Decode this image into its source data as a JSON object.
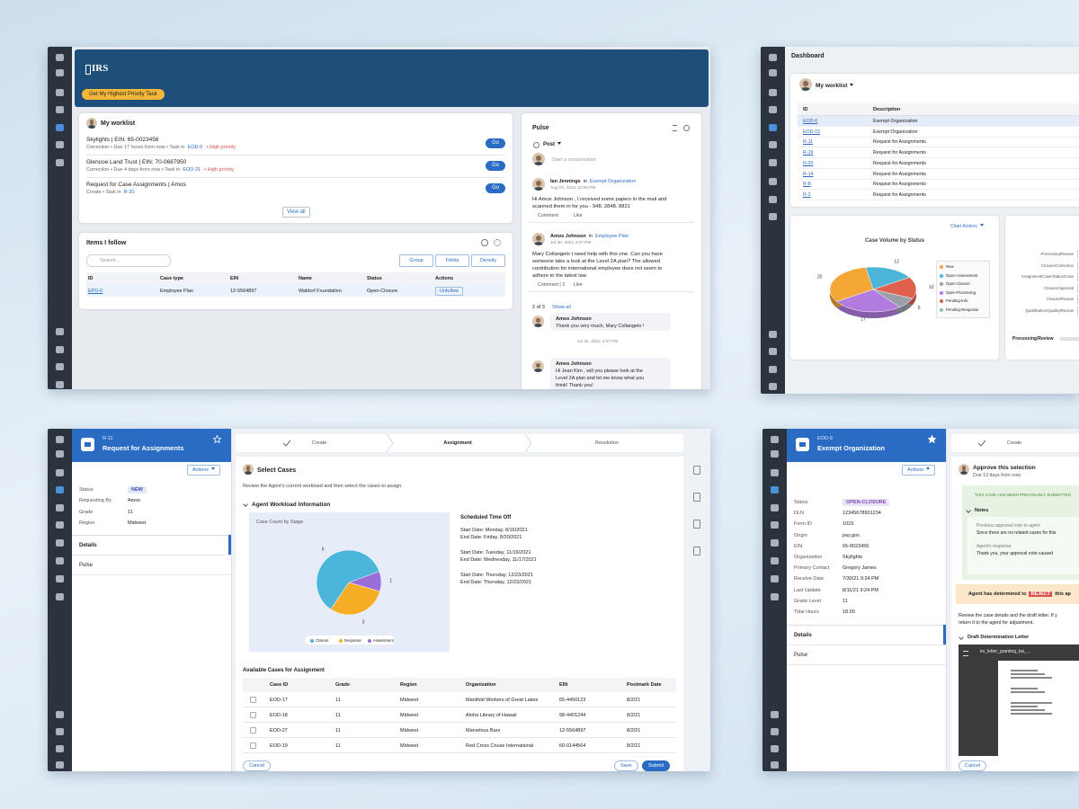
{
  "worklist_app": {
    "logo": "IRS",
    "priority_button": "Get My Highest Priority Task",
    "worklist": {
      "title": "My worklist",
      "items": [
        {
          "title": "Skylights  |  EIN: 65-0023456",
          "meta": "Correction  •  Due 17 hours from now  •  Task in",
          "case": "EOD-6",
          "flag": "•  High priority",
          "action": "Go"
        },
        {
          "title": "Glencoe Land Trust  |  EIN: 70-0687950",
          "meta": "Correction  •  Due 4 days from now  •  Task in",
          "case": "EOD-21",
          "flag": "•  High priority",
          "action": "Go"
        },
        {
          "title": "Request for Case Assignments  |  Amos",
          "meta": "Create  •  Task in",
          "case": "R-20",
          "action": "Go"
        }
      ],
      "view_all": "View all"
    },
    "followed": {
      "title": "Items I follow",
      "search": "Search...",
      "tools": [
        "Group",
        "Fields",
        "Density"
      ],
      "columns": [
        "ID",
        "Case type",
        "EIN",
        "Name",
        "Status",
        "Actions"
      ],
      "rows": [
        [
          "EPD-6",
          "Employee Plan",
          "12-5564897",
          "Waldorf Foundation",
          "Open-Closure",
          "Unfollow"
        ]
      ]
    },
    "pulse": {
      "title": "Pulse",
      "post": "Post",
      "placeholder": "Start a conversation",
      "posts": [
        {
          "author": "Ian Jennings",
          "in": "in",
          "context": "Exempt Organization",
          "time": "Aug 04, 2021 12:08 PM",
          "text": [
            "Hi Amos Johnson , I received some papers in the mail and",
            "scanned them in for you - 948, 2848, 8821"
          ],
          "actions": [
            "Comment",
            "Like"
          ]
        },
        {
          "author": "Amos Johnson",
          "in": "in",
          "context": "Employee Plan",
          "time": "Jul 30, 2021 4:07 PM",
          "text": [
            "Mary Collangelo I need help with this one. Can you have",
            "someone take a look at the Level 2A plan? The allowed",
            "contribution for international employee does not seem to",
            "adhere to the latest law."
          ],
          "actions": [
            "Comment | 3",
            "Like"
          ]
        }
      ],
      "replies_count": "2 of 3",
      "show_all": "Show all",
      "replies": [
        {
          "author": "Amos Johnson",
          "text": [
            "Thank you very much, Mary Collangelo !"
          ],
          "time": "Jul 31, 2021 4:07 PM"
        },
        {
          "author": "Amos Johnson",
          "text": [
            "Hi Jean Kim , will you please look at the",
            "Level 2A plan and let me know what you",
            "think! Thank you!"
          ]
        }
      ]
    }
  },
  "dashboard": {
    "title": "Dashboard",
    "worklist_title": "My worklist",
    "columns": [
      "ID",
      "Description"
    ],
    "rows": [
      [
        "EOD-6",
        "Exempt Organization"
      ],
      [
        "EOD-15",
        "Exempt Organization"
      ],
      [
        "R-11",
        "Request for Assignments"
      ],
      [
        "R-19",
        "Request for Assignments"
      ],
      [
        "R-20",
        "Request for Assignments"
      ],
      [
        "R-14",
        "Request for Assignments"
      ],
      [
        "R-8",
        "Request for Assignments"
      ],
      [
        "R-2",
        "Request for Assignments"
      ]
    ],
    "chart_actions": "Chart Actions",
    "case_volume_chart": {
      "type": "pie",
      "title": "Case Volume by Status",
      "slices": [
        {
          "value": 12,
          "color": "#4db6d8"
        },
        {
          "value": 10,
          "color": "#e0604e"
        },
        {
          "value": 5,
          "color": "#9aa0a8"
        },
        {
          "value": 17,
          "color": "#b27be0"
        },
        {
          "value": 20,
          "color": "#f4a637"
        }
      ],
      "legend": [
        {
          "name": "New",
          "color": "#f4a637"
        },
        {
          "name": "Open-Assessment",
          "color": "#4db6d8"
        },
        {
          "name": "Open-Closure",
          "color": "#9aa0a8"
        },
        {
          "name": "Open-Processing",
          "color": "#b27be0"
        },
        {
          "name": "Pending-Info",
          "color": "#e0604e"
        },
        {
          "name": "Pending-Response",
          "color": "#7fc9a3"
        }
      ]
    },
    "stage_labels": [
      "Processing/Review",
      "Closure/Correction",
      "Assignment/Case/Status/Case",
      "Closure/Approval",
      "Closure/Review",
      "Qualification/Quality/Review"
    ],
    "footer_label": "Processing/Review"
  },
  "assignment_case": {
    "case_id": "R-11",
    "title": "Request for Assignments",
    "actions": "Actions",
    "fields": [
      {
        "label": "Status",
        "value": "NEW"
      },
      {
        "label": "Requesting By",
        "value": "Amos"
      },
      {
        "label": "Grade",
        "value": "11"
      },
      {
        "label": "Region",
        "value": "Midwest"
      }
    ],
    "tabs": [
      "Details",
      "Pulse"
    ],
    "stages": [
      "Create",
      "Assignment",
      "Resolution"
    ],
    "step_title": "Select Cases",
    "instructions": "Review the Agent's current workload and then select the cases to assign.",
    "section": "Agent Workload Information",
    "chart": {
      "type": "pie",
      "title": "Case Count by Stage",
      "slices": [
        {
          "name": "Closure",
          "value": 6,
          "color": "#4bb5da"
        },
        {
          "name": "Response",
          "value": 3,
          "color": "#f5ae25"
        },
        {
          "name": "Assessment",
          "value": 1,
          "color": "#9a6ed8"
        }
      ]
    },
    "time_off": {
      "title": "Scheduled Time Off",
      "periods": [
        [
          "Start Date: Monday, 8/16/2021",
          "End Date:  Friday, 8/20/2021"
        ],
        [
          "Start Date: Tuesday, 11/16/2021",
          "End Date: Wednesday, 11/17/2021"
        ],
        [
          "Start Date: Thursday, 12/23/2021",
          "End Date: Thursday, 12/23/2021"
        ]
      ]
    },
    "cases": {
      "title": "Available Cases for Assignment",
      "columns": [
        "Case ID",
        "Grade",
        "Region",
        "Organization",
        "EIN",
        "Postmark Date"
      ],
      "rows": [
        [
          "EOD-17",
          "11",
          "Midwest",
          "Manifold Workers of Great Lakes",
          "65-4450123",
          "8/2/21"
        ],
        [
          "EOD-18",
          "11",
          "Midwest",
          "Aloha Library of Hawaii",
          "98-4401244",
          "8/2/21"
        ],
        [
          "EOD-27",
          "11",
          "Midwest",
          "Marvelous Bars",
          "12-5564897",
          "8/2/21"
        ],
        [
          "EOD-19",
          "11",
          "Midwest",
          "Red Cross Cruise International",
          "60-0144564",
          "8/2/21"
        ]
      ]
    },
    "buttons": [
      "Cancel",
      "Save",
      "Submit"
    ]
  },
  "exempt_case": {
    "case_id": "EOD-9",
    "title": "Exempt Organization",
    "actions": "Actions",
    "fields": [
      {
        "label": "Status",
        "value": "OPEN-CLOSURE"
      },
      {
        "label": "DLN",
        "value": "12345678901234"
      },
      {
        "label": "Form ID",
        "value": "1023"
      },
      {
        "label": "Origin",
        "value": "pay.gov"
      },
      {
        "label": "EIN",
        "value": "65-0023456"
      },
      {
        "label": "Organization",
        "value": "Skylights"
      },
      {
        "label": "Primary Contact",
        "value": "Gregory James"
      },
      {
        "label": "Receive Date",
        "value": "7/30/21 9:24 PM"
      },
      {
        "label": "Last Update",
        "value": "8/11/21 9:24 PM"
      },
      {
        "label": "Grade Level",
        "value": "11"
      },
      {
        "label": "Total Hours",
        "value": "18.00"
      }
    ],
    "tabs": [
      "Details",
      "Pulse"
    ],
    "stages": [
      "Create"
    ],
    "step_title": "Approve this selection",
    "due": "Due 13 days from now",
    "banner": "THIS CASE HAS BEEN PREVIOUSLY SUBMITTED",
    "notes_title": "Notes",
    "notes": [
      {
        "label": "Previous approval note to agent",
        "text": "Since there are no related cases for this"
      },
      {
        "label": "Agent's response",
        "text": "Thank you, your approval note caused"
      }
    ],
    "determination": [
      "Agent has determined to",
      "REJECT",
      "this ap"
    ],
    "review": [
      "Review the case details and the draft letter. If y",
      "return it to the agent for adjustment."
    ],
    "letter_title": "Draft Determination Letter",
    "file": "irs_letter_granting_tax_...",
    "cancel": "Cancel"
  }
}
